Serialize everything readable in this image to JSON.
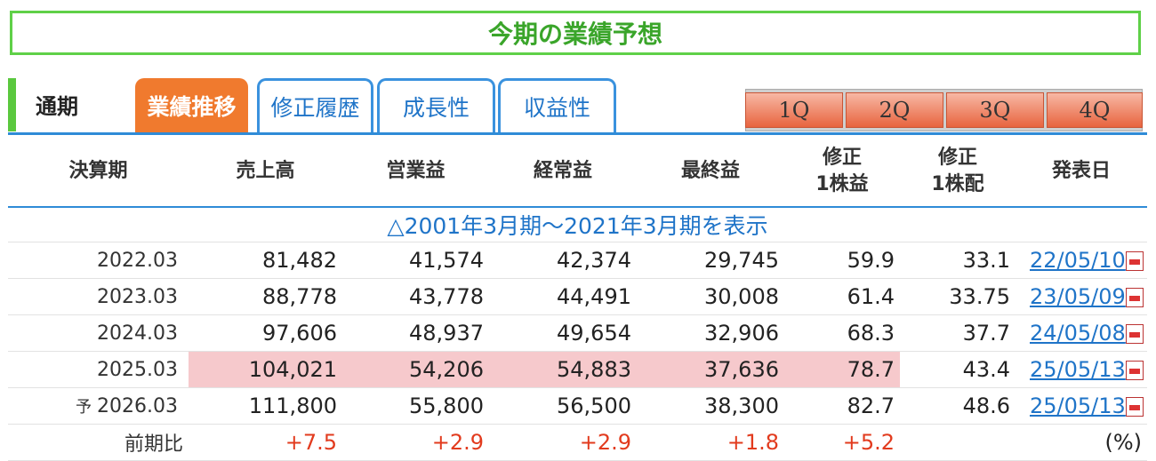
{
  "title": "今期の業績予想",
  "tabs": {
    "period": "通期",
    "active": "業績推移",
    "items": [
      "修正履歴",
      "成長性",
      "収益性"
    ]
  },
  "quarters": [
    "1Q",
    "2Q",
    "3Q",
    "4Q"
  ],
  "headers": {
    "period": "決算期",
    "sales": "売上高",
    "op": "営業益",
    "ord": "経常益",
    "net": "最終益",
    "eps_l1": "修正",
    "eps_l2": "1株益",
    "div_l1": "修正",
    "div_l2": "1株配",
    "date": "発表日"
  },
  "show_range": "△2001年3月期～2021年3月期を表示",
  "rows": [
    {
      "period": "2022.03",
      "sales": "81,482",
      "op": "41,574",
      "ord": "42,374",
      "net": "29,745",
      "eps": "59.9",
      "div": "33.1",
      "date": "22/05/10"
    },
    {
      "period": "2023.03",
      "sales": "88,778",
      "op": "43,778",
      "ord": "44,491",
      "net": "30,008",
      "eps": "61.4",
      "div": "33.75",
      "date": "23/05/09"
    },
    {
      "period": "2024.03",
      "sales": "97,606",
      "op": "48,937",
      "ord": "49,654",
      "net": "32,906",
      "eps": "68.3",
      "div": "37.7",
      "date": "24/05/08"
    },
    {
      "period": "2025.03",
      "sales": "104,021",
      "op": "54,206",
      "ord": "54,883",
      "net": "37,636",
      "eps": "78.7",
      "div": "43.4",
      "date": "25/05/13"
    },
    {
      "prefix": "予",
      "period": "2026.03",
      "sales": "111,800",
      "op": "55,800",
      "ord": "56,500",
      "net": "38,300",
      "eps": "82.7",
      "div": "48.6",
      "date": "25/05/13"
    }
  ],
  "yoy": {
    "label": "前期比",
    "sales": "+7.5",
    "op": "+2.9",
    "ord": "+2.9",
    "net": "+1.8",
    "eps": "+5.2",
    "unit": "(%)"
  },
  "colors": {
    "green": "#5fd048",
    "orange": "#f07a2e",
    "blue": "#2f8bd7",
    "highlight": "#f6c9cc",
    "red": "#e23b1e"
  },
  "icons": {
    "pdf": "pdf-icon"
  }
}
